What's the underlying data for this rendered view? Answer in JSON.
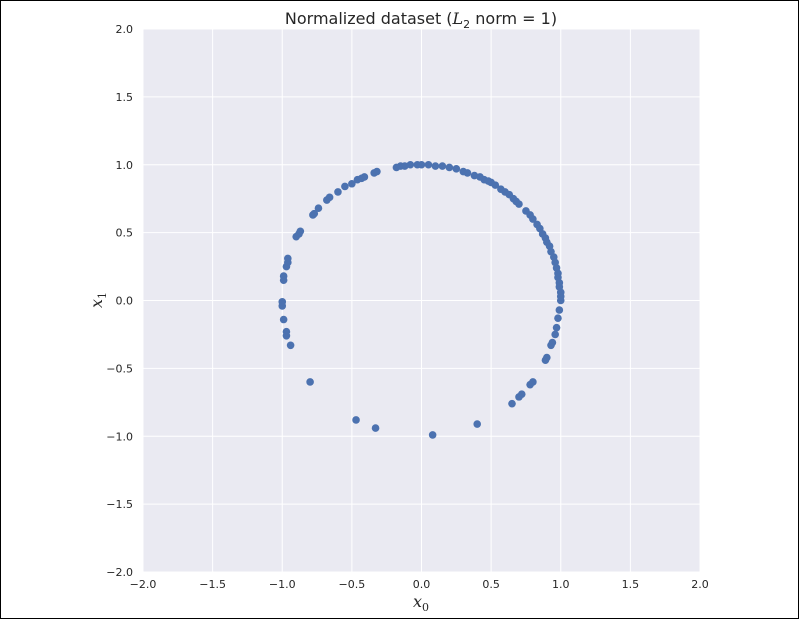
{
  "chart_data": {
    "type": "scatter",
    "title": {
      "prefix": "Normalized dataset (",
      "symbol": "L",
      "subscript": "2",
      "suffix": " norm = 1)"
    },
    "xlabel": {
      "symbol": "x",
      "subscript": "0"
    },
    "ylabel": {
      "symbol": "x",
      "subscript": "1"
    },
    "xlim": [
      -2.0,
      2.0
    ],
    "ylim": [
      -2.0,
      2.0
    ],
    "xticks": [
      -2.0,
      -1.5,
      -1.0,
      -0.5,
      0.0,
      0.5,
      1.0,
      1.5,
      2.0
    ],
    "yticks": [
      -2.0,
      -1.5,
      -1.0,
      -0.5,
      0.0,
      0.5,
      1.0,
      1.5,
      2.0
    ],
    "xtick_labels": [
      "−2.0",
      "−1.5",
      "−1.0",
      "−0.5",
      "0.0",
      "0.5",
      "1.0",
      "1.5",
      "2.0"
    ],
    "ytick_labels": [
      "−2.0",
      "−1.5",
      "−1.0",
      "−0.5",
      "0.0",
      "0.5",
      "1.0",
      "1.5",
      "2.0"
    ],
    "grid": true,
    "colors": {
      "background": "#eaeaf2",
      "grid": "#ffffff",
      "marker": "#4c72b0"
    },
    "points": [
      {
        "x": -0.03,
        "y": 1.0
      },
      {
        "x": 0.0,
        "y": 1.0
      },
      {
        "x": 0.05,
        "y": 1.0
      },
      {
        "x": -0.08,
        "y": 1.0
      },
      {
        "x": -0.12,
        "y": 0.99
      },
      {
        "x": -0.15,
        "y": 0.99
      },
      {
        "x": -0.18,
        "y": 0.98
      },
      {
        "x": 0.1,
        "y": 0.99
      },
      {
        "x": 0.15,
        "y": 0.99
      },
      {
        "x": 0.2,
        "y": 0.98
      },
      {
        "x": 0.25,
        "y": 0.97
      },
      {
        "x": 0.3,
        "y": 0.95
      },
      {
        "x": 0.33,
        "y": 0.94
      },
      {
        "x": 0.38,
        "y": 0.92
      },
      {
        "x": 0.42,
        "y": 0.91
      },
      {
        "x": 0.45,
        "y": 0.89
      },
      {
        "x": 0.48,
        "y": 0.88
      },
      {
        "x": 0.5,
        "y": 0.87
      },
      {
        "x": 0.53,
        "y": 0.85
      },
      {
        "x": 0.57,
        "y": 0.82
      },
      {
        "x": 0.6,
        "y": 0.8
      },
      {
        "x": 0.63,
        "y": 0.78
      },
      {
        "x": 0.66,
        "y": 0.75
      },
      {
        "x": 0.68,
        "y": 0.73
      },
      {
        "x": 0.7,
        "y": 0.71
      },
      {
        "x": 0.75,
        "y": 0.66
      },
      {
        "x": 0.78,
        "y": 0.63
      },
      {
        "x": 0.8,
        "y": 0.6
      },
      {
        "x": 0.83,
        "y": 0.56
      },
      {
        "x": 0.85,
        "y": 0.53
      },
      {
        "x": 0.87,
        "y": 0.49
      },
      {
        "x": 0.89,
        "y": 0.46
      },
      {
        "x": 0.9,
        "y": 0.43
      },
      {
        "x": 0.92,
        "y": 0.4
      },
      {
        "x": 0.93,
        "y": 0.36
      },
      {
        "x": 0.95,
        "y": 0.32
      },
      {
        "x": 0.96,
        "y": 0.28
      },
      {
        "x": 0.97,
        "y": 0.24
      },
      {
        "x": 0.98,
        "y": 0.2
      },
      {
        "x": 0.98,
        "y": 0.17
      },
      {
        "x": 0.99,
        "y": 0.13
      },
      {
        "x": 0.99,
        "y": 0.1
      },
      {
        "x": 1.0,
        "y": 0.06
      },
      {
        "x": 1.0,
        "y": 0.03
      },
      {
        "x": 1.0,
        "y": 0.0
      },
      {
        "x": 0.99,
        "y": -0.07
      },
      {
        "x": 0.98,
        "y": -0.13
      },
      {
        "x": 0.97,
        "y": -0.2
      },
      {
        "x": 0.96,
        "y": -0.25
      },
      {
        "x": 0.94,
        "y": -0.31
      },
      {
        "x": 0.93,
        "y": -0.33
      },
      {
        "x": 0.9,
        "y": -0.42
      },
      {
        "x": 0.89,
        "y": -0.44
      },
      {
        "x": 0.8,
        "y": -0.6
      },
      {
        "x": 0.78,
        "y": -0.62
      },
      {
        "x": 0.72,
        "y": -0.69
      },
      {
        "x": 0.7,
        "y": -0.71
      },
      {
        "x": 0.65,
        "y": -0.76
      },
      {
        "x": 0.4,
        "y": -0.91
      },
      {
        "x": 0.08,
        "y": -0.99
      },
      {
        "x": -0.33,
        "y": -0.94
      },
      {
        "x": -0.47,
        "y": -0.88
      },
      {
        "x": -0.8,
        "y": -0.6
      },
      {
        "x": -0.94,
        "y": -0.33
      },
      {
        "x": -0.97,
        "y": -0.26
      },
      {
        "x": -0.97,
        "y": -0.23
      },
      {
        "x": -0.99,
        "y": -0.14
      },
      {
        "x": -1.0,
        "y": -0.04
      },
      {
        "x": -1.0,
        "y": -0.01
      },
      {
        "x": -0.99,
        "y": 0.15
      },
      {
        "x": -0.99,
        "y": 0.18
      },
      {
        "x": -0.97,
        "y": 0.25
      },
      {
        "x": -0.96,
        "y": 0.28
      },
      {
        "x": -0.96,
        "y": 0.31
      },
      {
        "x": -0.9,
        "y": 0.47
      },
      {
        "x": -0.88,
        "y": 0.49
      },
      {
        "x": -0.87,
        "y": 0.51
      },
      {
        "x": -0.78,
        "y": 0.63
      },
      {
        "x": -0.77,
        "y": 0.64
      },
      {
        "x": -0.74,
        "y": 0.68
      },
      {
        "x": -0.68,
        "y": 0.74
      },
      {
        "x": -0.66,
        "y": 0.76
      },
      {
        "x": -0.6,
        "y": 0.8
      },
      {
        "x": -0.55,
        "y": 0.84
      },
      {
        "x": -0.5,
        "y": 0.86
      },
      {
        "x": -0.46,
        "y": 0.89
      },
      {
        "x": -0.43,
        "y": 0.9
      },
      {
        "x": -0.41,
        "y": 0.91
      },
      {
        "x": -0.34,
        "y": 0.94
      },
      {
        "x": -0.32,
        "y": 0.95
      }
    ]
  }
}
